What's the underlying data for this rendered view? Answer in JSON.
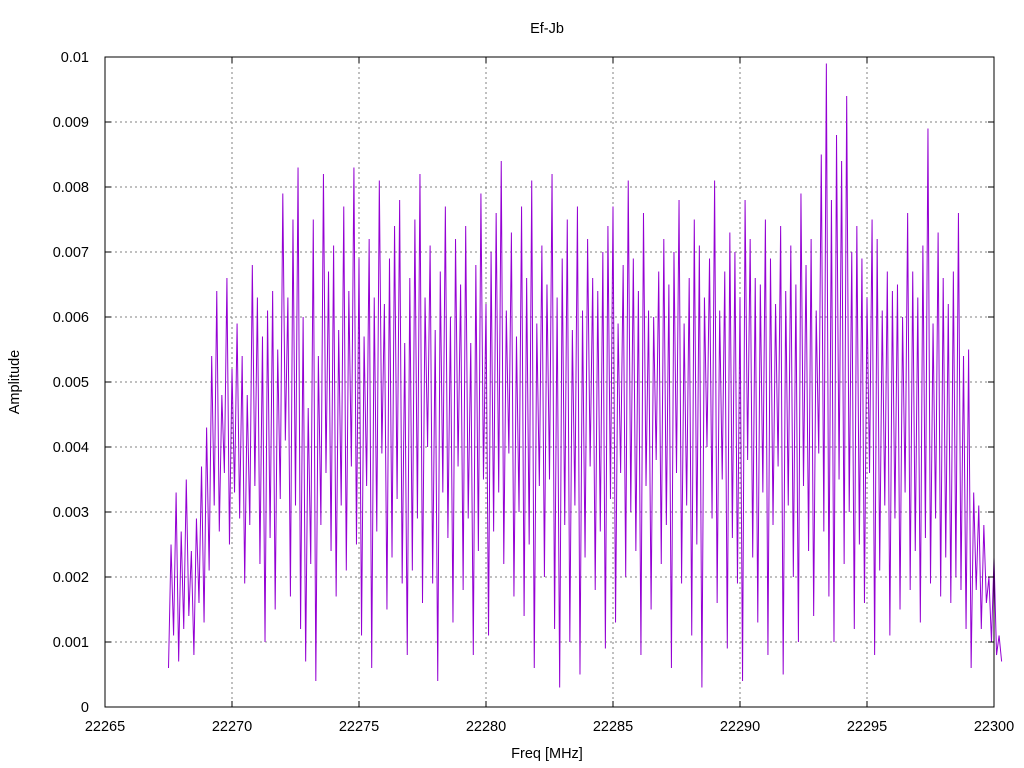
{
  "chart_data": {
    "type": "line",
    "title": "Ef-Jb",
    "xlabel": "Freq [MHz]",
    "ylabel": "Amplitude",
    "xlim": [
      22265,
      22300
    ],
    "ylim": [
      0,
      0.01
    ],
    "x_ticks": [
      "22265",
      "22270",
      "22275",
      "22280",
      "22285",
      "22290",
      "22295",
      "22300"
    ],
    "y_ticks": [
      "0",
      "0.001",
      "0.002",
      "0.003",
      "0.004",
      "0.005",
      "0.006",
      "0.007",
      "0.008",
      "0.009",
      "0.01"
    ],
    "grid": true,
    "legend": "none",
    "series_color": "#9400d3",
    "series": [
      {
        "x_start": 22267.5,
        "x_step": 0.1,
        "values": [
          0.0006,
          0.0025,
          0.0011,
          0.0033,
          0.0007,
          0.0027,
          0.0012,
          0.0035,
          0.0014,
          0.0024,
          0.0008,
          0.0029,
          0.0016,
          0.0037,
          0.0013,
          0.0043,
          0.0021,
          0.0054,
          0.0031,
          0.0064,
          0.0027,
          0.0048,
          0.0036,
          0.0066,
          0.0025,
          0.0052,
          0.0033,
          0.0059,
          0.0029,
          0.0054,
          0.0019,
          0.0048,
          0.0028,
          0.0068,
          0.0034,
          0.0063,
          0.0022,
          0.0057,
          0.001,
          0.0061,
          0.0026,
          0.0064,
          0.0015,
          0.0055,
          0.0032,
          0.0079,
          0.0041,
          0.0063,
          0.0017,
          0.0075,
          0.0031,
          0.0083,
          0.0012,
          0.006,
          0.0007,
          0.0046,
          0.0022,
          0.0075,
          0.0004,
          0.0054,
          0.0028,
          0.0082,
          0.0036,
          0.0067,
          0.0024,
          0.0071,
          0.0017,
          0.0058,
          0.0031,
          0.0077,
          0.0021,
          0.0064,
          0.0037,
          0.0083,
          0.0025,
          0.0069,
          0.0011,
          0.0057,
          0.0034,
          0.0072,
          0.0006,
          0.0063,
          0.0027,
          0.0081,
          0.0039,
          0.0062,
          0.0015,
          0.0069,
          0.0023,
          0.0074,
          0.0032,
          0.0078,
          0.0019,
          0.0056,
          0.0008,
          0.0066,
          0.0021,
          0.0075,
          0.0029,
          0.0082,
          0.0016,
          0.0063,
          0.004,
          0.0071,
          0.0019,
          0.0058,
          0.0004,
          0.0067,
          0.0033,
          0.0077,
          0.0026,
          0.006,
          0.0013,
          0.0072,
          0.0037,
          0.0065,
          0.0018,
          0.0074,
          0.0029,
          0.0056,
          0.0008,
          0.0068,
          0.0024,
          0.0079,
          0.0035,
          0.0062,
          0.0011,
          0.007,
          0.0027,
          0.0076,
          0.0033,
          0.0084,
          0.0022,
          0.0061,
          0.0039,
          0.0073,
          0.0017,
          0.0057,
          0.003,
          0.0077,
          0.0014,
          0.0066,
          0.0025,
          0.0081,
          0.0006,
          0.0059,
          0.0034,
          0.0071,
          0.002,
          0.0065,
          0.0035,
          0.0082,
          0.0012,
          0.0063,
          0.0003,
          0.0069,
          0.0028,
          0.0075,
          0.001,
          0.0058,
          0.0031,
          0.0077,
          0.0005,
          0.0061,
          0.0023,
          0.0072,
          0.0037,
          0.0066,
          0.0018,
          0.0064,
          0.0027,
          0.007,
          0.0009,
          0.0074,
          0.0032,
          0.0077,
          0.0013,
          0.0059,
          0.0036,
          0.0068,
          0.002,
          0.0081,
          0.003,
          0.0069,
          0.0024,
          0.0064,
          0.0008,
          0.0076,
          0.0034,
          0.0061,
          0.0015,
          0.006,
          0.0038,
          0.0067,
          0.0022,
          0.0072,
          0.0028,
          0.0065,
          0.0006,
          0.007,
          0.0036,
          0.0078,
          0.0019,
          0.0059,
          0.0031,
          0.0066,
          0.0011,
          0.0075,
          0.0025,
          0.0071,
          0.0003,
          0.0063,
          0.004,
          0.0069,
          0.0029,
          0.0081,
          0.0016,
          0.0061,
          0.0035,
          0.0067,
          0.0009,
          0.0073,
          0.0026,
          0.007,
          0.0019,
          0.0063,
          0.0004,
          0.0078,
          0.0038,
          0.0072,
          0.0023,
          0.0066,
          0.0013,
          0.0065,
          0.0033,
          0.0075,
          0.0008,
          0.0069,
          0.0028,
          0.0062,
          0.0037,
          0.0074,
          0.0005,
          0.0064,
          0.0031,
          0.0071,
          0.002,
          0.0065,
          0.001,
          0.0079,
          0.0034,
          0.0068,
          0.0024,
          0.0072,
          0.0014,
          0.0061,
          0.0039,
          0.0085,
          0.0027,
          0.0099,
          0.0017,
          0.0078,
          0.001,
          0.0088,
          0.0035,
          0.0084,
          0.0022,
          0.0094,
          0.003,
          0.007,
          0.0012,
          0.0074,
          0.0025,
          0.0069,
          0.0016,
          0.0063,
          0.0036,
          0.0075,
          0.0008,
          0.0072,
          0.0021,
          0.0061,
          0.0031,
          0.0067,
          0.0011,
          0.0064,
          0.0029,
          0.0065,
          0.0015,
          0.006,
          0.0033,
          0.0076,
          0.0018,
          0.0067,
          0.0024,
          0.0063,
          0.0013,
          0.0071,
          0.0026,
          0.0089,
          0.0019,
          0.0059,
          0.0029,
          0.0073,
          0.0017,
          0.0066,
          0.0023,
          0.0062,
          0.0016,
          0.0067,
          0.002,
          0.0076,
          0.0018,
          0.0054,
          0.0012,
          0.0055,
          0.0006,
          0.0033,
          0.0018,
          0.0031,
          0.0012,
          0.0028,
          0.0016,
          0.002,
          0.001,
          0.0023,
          0.0008,
          0.0011,
          0.0007
        ]
      }
    ]
  }
}
